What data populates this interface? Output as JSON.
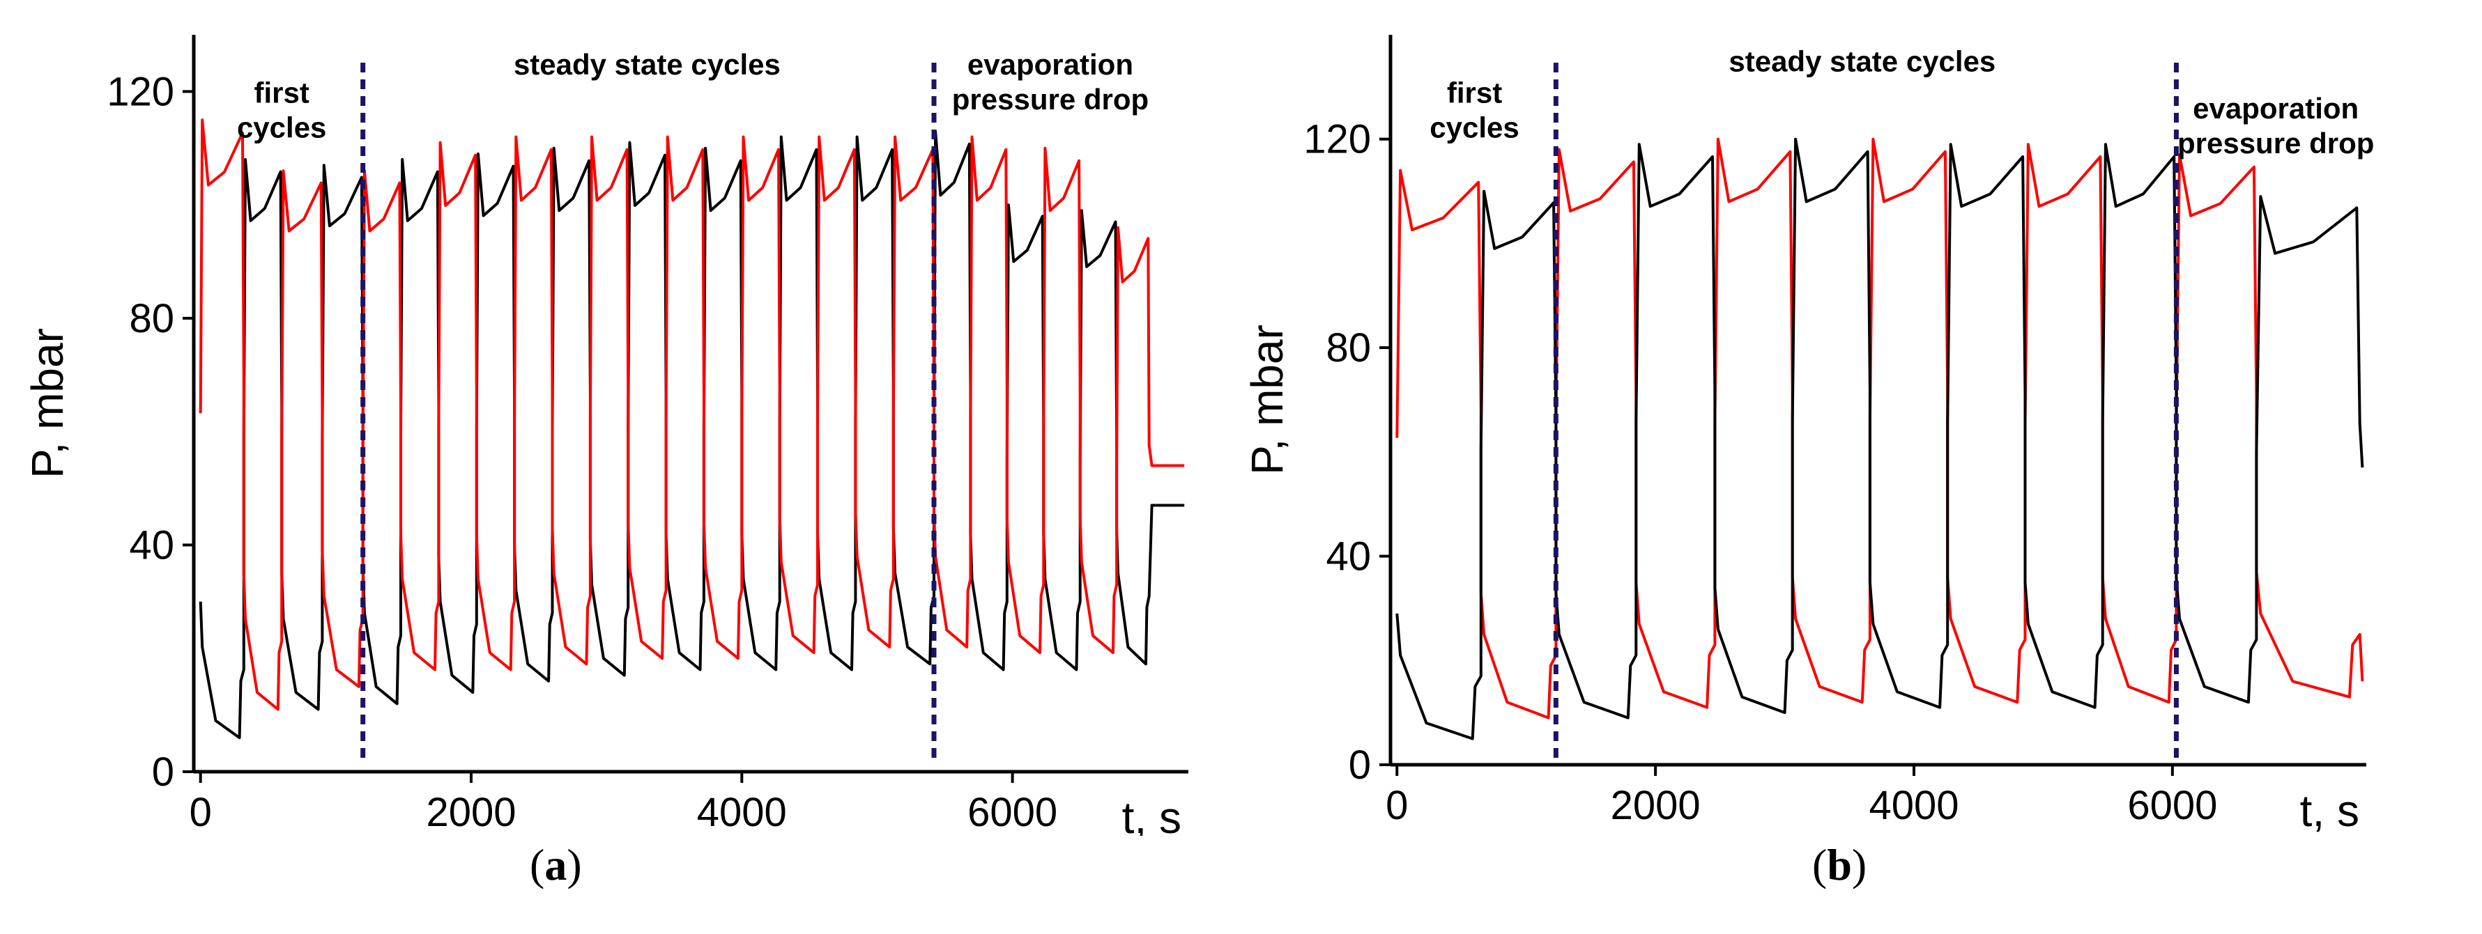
{
  "panels": [
    {
      "label_prefix": "(",
      "label_letter": "a",
      "label_suffix": ")"
    },
    {
      "label_prefix": "(",
      "label_letter": "b",
      "label_suffix": ")"
    }
  ],
  "chart_data": [
    {
      "type": "line",
      "title": "",
      "xlabel": "t, s",
      "ylabel": "P, mbar",
      "xlim": [
        -50,
        7300
      ],
      "ylim": [
        0,
        130
      ],
      "xticks": [
        0,
        2000,
        4000,
        6000
      ],
      "xtick_labels": [
        "0",
        "2000",
        "4000",
        "6000"
      ],
      "yticks": [
        0,
        40,
        80,
        120
      ],
      "ytick_labels": [
        "0",
        "40",
        "80",
        "120"
      ],
      "grid": false,
      "annotations": [
        {
          "text_lines": [
            "first",
            "cycles"
          ],
          "x": 600,
          "y": 118
        },
        {
          "text_lines": [
            "steady state cycles"
          ],
          "x": 3300,
          "y": 123
        },
        {
          "text_lines": [
            "evaporation",
            "pressure drop"
          ],
          "x": 6280,
          "y": 123
        }
      ],
      "phase_dividers_x": [
        1200,
        5420
      ],
      "series": [
        {
          "color": "#000000",
          "switch_times": [
            0,
            320,
            600,
            900,
            1200,
            1480,
            1760,
            2040,
            2320,
            2600,
            2880,
            3160,
            3440,
            3720,
            4000,
            4280,
            4560,
            4840,
            5120,
            5420,
            5690,
            5960,
            6230,
            6500,
            6770,
            7010
          ],
          "high_peaks": [
            108,
            107,
            108,
            109,
            110,
            111,
            110,
            112,
            112,
            113,
            100,
            99,
            99
          ],
          "low_mins": [
            6,
            11,
            12,
            14,
            16,
            17,
            18,
            18,
            18,
            19,
            18,
            18,
            19
          ],
          "end_value": 47
        },
        {
          "color": "#ff0000",
          "switch_times": [
            0,
            320,
            600,
            900,
            1200,
            1480,
            1760,
            2040,
            2320,
            2600,
            2880,
            3160,
            3440,
            3720,
            4000,
            4280,
            4560,
            4840,
            5120,
            5420,
            5690,
            5960,
            6230,
            6500,
            6770,
            7010
          ],
          "high_peaks": [
            115,
            106,
            106,
            111,
            112,
            112,
            112,
            112,
            112,
            112,
            112,
            110,
            96,
            92
          ],
          "low_mins": [
            11,
            15,
            18,
            18,
            19,
            20,
            20,
            21,
            22,
            22,
            21,
            21,
            21
          ],
          "end_value": 54
        }
      ]
    },
    {
      "type": "line",
      "title": "",
      "xlabel": "t, s",
      "ylabel": "P, mbar",
      "xlim": [
        -50,
        7500
      ],
      "ylim": [
        0,
        140
      ],
      "xticks": [
        0,
        2000,
        4000,
        6000
      ],
      "xtick_labels": [
        "0",
        "2000",
        "4000",
        "6000"
      ],
      "yticks": [
        0,
        40,
        80,
        120
      ],
      "ytick_labels": [
        "0",
        "40",
        "80",
        "120"
      ],
      "grid": false,
      "annotations": [
        {
          "text_lines": [
            "first",
            "cycles"
          ],
          "x": 600,
          "y": 127
        },
        {
          "text_lines": [
            "steady state cycles"
          ],
          "x": 3600,
          "y": 133
        },
        {
          "text_lines": [
            "evaporation",
            "pressure drop"
          ],
          "x": 6800,
          "y": 124
        }
      ],
      "phase_dividers_x": [
        1230,
        6030
      ],
      "series": [
        {
          "color": "#ff0000",
          "switch_times": [
            0,
            650,
            1230,
            1850,
            2460,
            3060,
            3660,
            4260,
            4860,
            5460,
            6030,
            6650,
            7450
          ],
          "high_peaks": [
            114,
            118,
            120,
            120,
            119,
            117
          ],
          "low_mins": [
            9,
            11,
            12,
            12,
            12,
            13,
            16
          ],
          "end_value": 16
        },
        {
          "color": "#000000",
          "switch_times": [
            0,
            650,
            1230,
            1850,
            2460,
            3060,
            3660,
            4260,
            4860,
            5460,
            6030,
            6650,
            7450
          ],
          "high_peaks": [
            110,
            119,
            120,
            119,
            119,
            109
          ],
          "low_mins": [
            5,
            9,
            10,
            11,
            11,
            12
          ],
          "end_value": 57
        }
      ]
    }
  ]
}
